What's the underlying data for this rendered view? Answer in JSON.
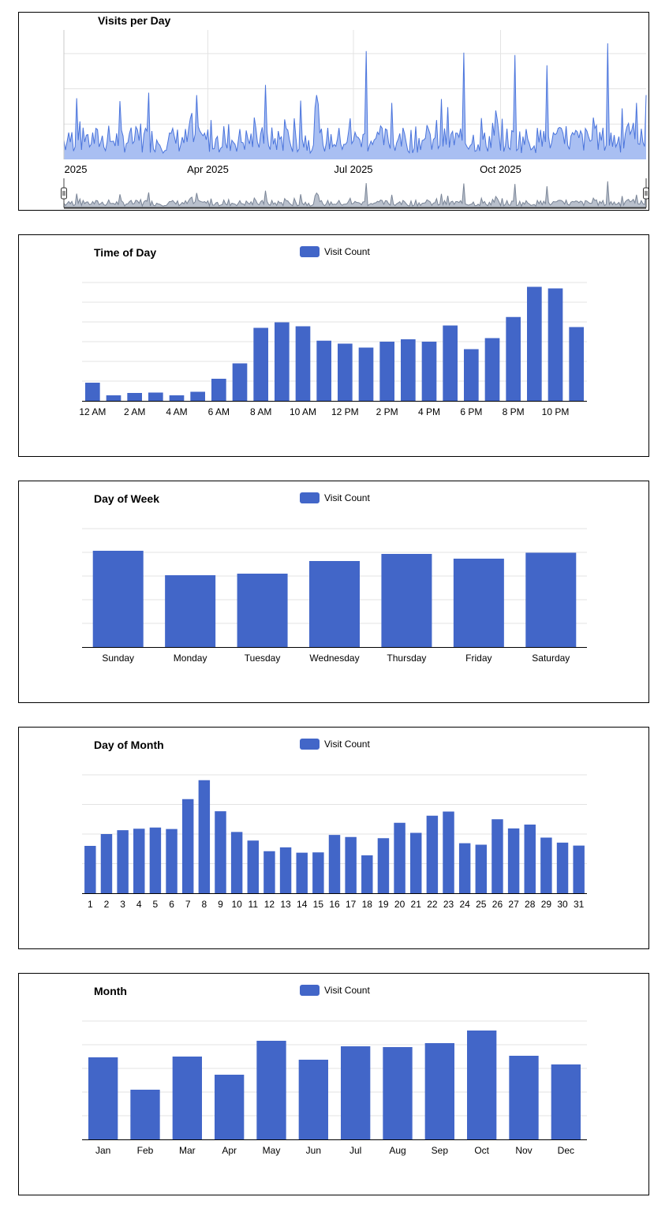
{
  "colors": {
    "bar": "#4266c8",
    "area_fill": "#a9bff2",
    "area_line": "#4a74dc",
    "grid": "#e3e3e3",
    "navigator_fill": "#b9c0cc",
    "navigator_line": "#7a8597"
  },
  "legend_label": "Visit Count",
  "chart_data": [
    {
      "id": "visits",
      "type": "area",
      "title": "Visits per Day",
      "x_tick_labels": [
        "2025",
        "Apr 2025",
        "Jul 2025",
        "Oct 2025"
      ],
      "x_range": [
        "2025-01-01",
        "2025-12-31"
      ],
      "ylim": [
        0,
        165
      ],
      "y_gridlines": [
        45,
        90,
        135
      ],
      "series": [
        {
          "name": "Visits",
          "base_level": 25,
          "spikes": [
            {
              "day": 8,
              "value": 78
            },
            {
              "day": 53,
              "value": 85
            },
            {
              "day": 83,
              "value": 82
            },
            {
              "day": 126,
              "value": 95
            },
            {
              "day": 148,
              "value": 75
            },
            {
              "day": 158,
              "value": 82
            },
            {
              "day": 189,
              "value": 138
            },
            {
              "day": 205,
              "value": 72
            },
            {
              "day": 236,
              "value": 77
            },
            {
              "day": 250,
              "value": 136
            },
            {
              "day": 282,
              "value": 133
            },
            {
              "day": 302,
              "value": 120
            },
            {
              "day": 340,
              "value": 148
            },
            {
              "day": 349,
              "value": 65
            },
            {
              "day": 358,
              "value": 72
            },
            {
              "day": 364,
              "value": 82
            }
          ]
        }
      ]
    },
    {
      "id": "time_of_day",
      "type": "bar",
      "title": "Time of Day",
      "categories": [
        "12 AM",
        "1 AM",
        "2 AM",
        "3 AM",
        "4 AM",
        "5 AM",
        "6 AM",
        "7 AM",
        "8 AM",
        "9 AM",
        "10 AM",
        "11 AM",
        "12 PM",
        "1 PM",
        "2 PM",
        "3 PM",
        "4 PM",
        "5 PM",
        "6 PM",
        "7 PM",
        "8 PM",
        "9 PM",
        "10 PM",
        "11 PM"
      ],
      "tick_labels": [
        "12 AM",
        "",
        "2 AM",
        "",
        "4 AM",
        "",
        "6 AM",
        "",
        "8 AM",
        "",
        "10 AM",
        "",
        "12 PM",
        "",
        "2 PM",
        "",
        "4 PM",
        "",
        "6 PM",
        "",
        "8 PM",
        "",
        "10 PM",
        ""
      ],
      "values": [
        92,
        28,
        40,
        42,
        28,
        46,
        112,
        190,
        370,
        398,
        378,
        305,
        290,
        270,
        300,
        312,
        300,
        382,
        262,
        318,
        425,
        578,
        570,
        374
      ],
      "ylim": [
        0,
        600
      ],
      "y_gridlines": [
        100,
        200,
        300,
        400,
        500,
        600
      ]
    },
    {
      "id": "day_of_week",
      "type": "bar",
      "title": "Day of Week",
      "categories": [
        "Sunday",
        "Monday",
        "Tuesday",
        "Wednesday",
        "Thursday",
        "Friday",
        "Saturday"
      ],
      "tick_labels": [
        "Sunday",
        "Monday",
        "Tuesday",
        "Wednesday",
        "Thursday",
        "Friday",
        "Saturday"
      ],
      "values": [
        1220,
        910,
        930,
        1090,
        1180,
        1120,
        1195
      ],
      "ylim": [
        0,
        1500
      ],
      "y_gridlines": [
        300,
        600,
        900,
        1200,
        1500
      ]
    },
    {
      "id": "day_of_month",
      "type": "bar",
      "title": "Day of Month",
      "categories": [
        "1",
        "2",
        "3",
        "4",
        "5",
        "6",
        "7",
        "8",
        "9",
        "10",
        "11",
        "12",
        "13",
        "14",
        "15",
        "16",
        "17",
        "18",
        "19",
        "20",
        "21",
        "22",
        "23",
        "24",
        "25",
        "26",
        "27",
        "28",
        "29",
        "30",
        "31"
      ],
      "tick_labels": [
        "1",
        "2",
        "3",
        "4",
        "5",
        "6",
        "7",
        "8",
        "9",
        "10",
        "11",
        "12",
        "13",
        "14",
        "15",
        "16",
        "17",
        "18",
        "19",
        "20",
        "21",
        "22",
        "23",
        "24",
        "25",
        "26",
        "27",
        "28",
        "29",
        "30",
        "31"
      ],
      "values": [
        160,
        200,
        213,
        218,
        222,
        217,
        318,
        382,
        277,
        207,
        178,
        142,
        155,
        137,
        138,
        197,
        190,
        128,
        186,
        238,
        204,
        262,
        276,
        169,
        164,
        250,
        219,
        232,
        188,
        171,
        161
      ],
      "ylim": [
        0,
        400
      ],
      "y_gridlines": [
        100,
        200,
        300,
        400
      ]
    },
    {
      "id": "month",
      "type": "bar",
      "title": "Month",
      "categories": [
        "Jan",
        "Feb",
        "Mar",
        "Apr",
        "May",
        "Jun",
        "Jul",
        "Aug",
        "Sep",
        "Oct",
        "Nov",
        "Dec"
      ],
      "tick_labels": [
        "Jan",
        "Feb",
        "Mar",
        "Apr",
        "May",
        "Jun",
        "Jul",
        "Aug",
        "Sep",
        "Oct",
        "Nov",
        "Dec"
      ],
      "values": [
        520,
        315,
        525,
        410,
        625,
        505,
        590,
        585,
        610,
        690,
        530,
        475
      ],
      "ylim": [
        0,
        750
      ],
      "y_gridlines": [
        150,
        300,
        450,
        600,
        750
      ]
    }
  ]
}
